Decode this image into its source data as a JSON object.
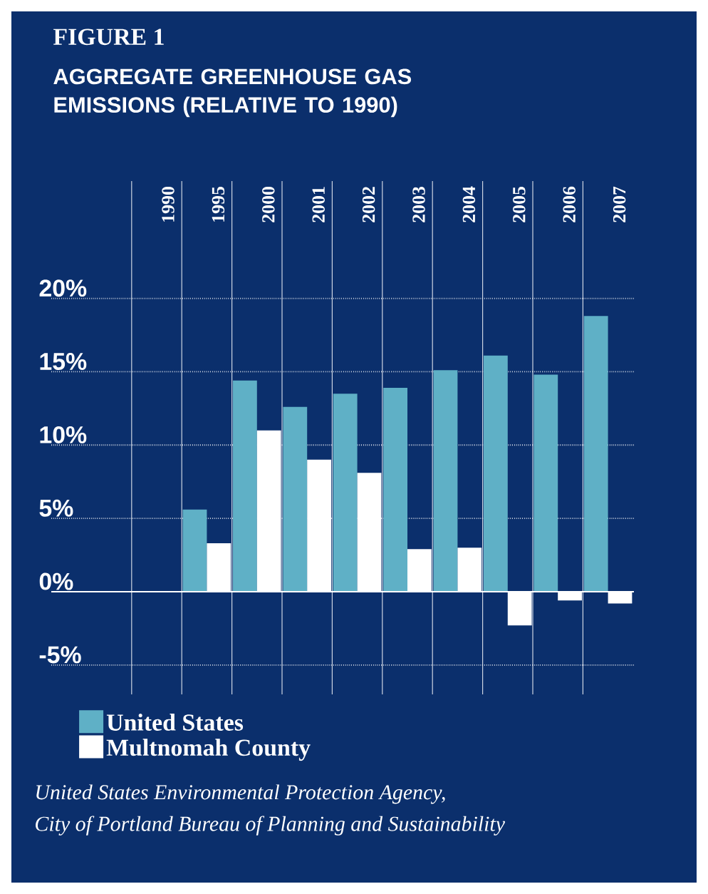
{
  "chart_data": {
    "type": "bar",
    "title": "FIGURE 1",
    "subtitle": "AGGREGATE GREENHOUSE GAS EMISSIONS (RELATIVE TO 1990)",
    "categories": [
      "1990",
      "1995",
      "2000",
      "2001",
      "2002",
      "2003",
      "2004",
      "2005",
      "2006",
      "2007"
    ],
    "series": [
      {
        "name": "United States",
        "color": "#5fb0c6",
        "values": [
          0,
          5.6,
          14.4,
          12.6,
          13.5,
          13.9,
          15.1,
          16.1,
          14.8,
          18.8
        ]
      },
      {
        "name": "Multnomah County",
        "color": "#ffffff",
        "values": [
          0,
          3.3,
          11.0,
          9.0,
          8.1,
          2.9,
          3.0,
          -2.3,
          -0.6,
          -0.8
        ]
      }
    ],
    "ylim": [
      -7,
      28
    ],
    "yticks": [
      {
        "value": -5,
        "label": "-5%"
      },
      {
        "value": 0,
        "label": "0%"
      },
      {
        "value": 5,
        "label": "5%"
      },
      {
        "value": 10,
        "label": "10%"
      },
      {
        "value": 15,
        "label": "15%"
      },
      {
        "value": 20,
        "label": "20%"
      }
    ],
    "grid": true,
    "legend": "bottom",
    "ref_lines": [
      {
        "axis": "y",
        "value": 0
      }
    ],
    "annotations": [
      "United States Environmental Protection Agency,",
      "City of Portland Bureau of Planning and Sustainability"
    ]
  }
}
